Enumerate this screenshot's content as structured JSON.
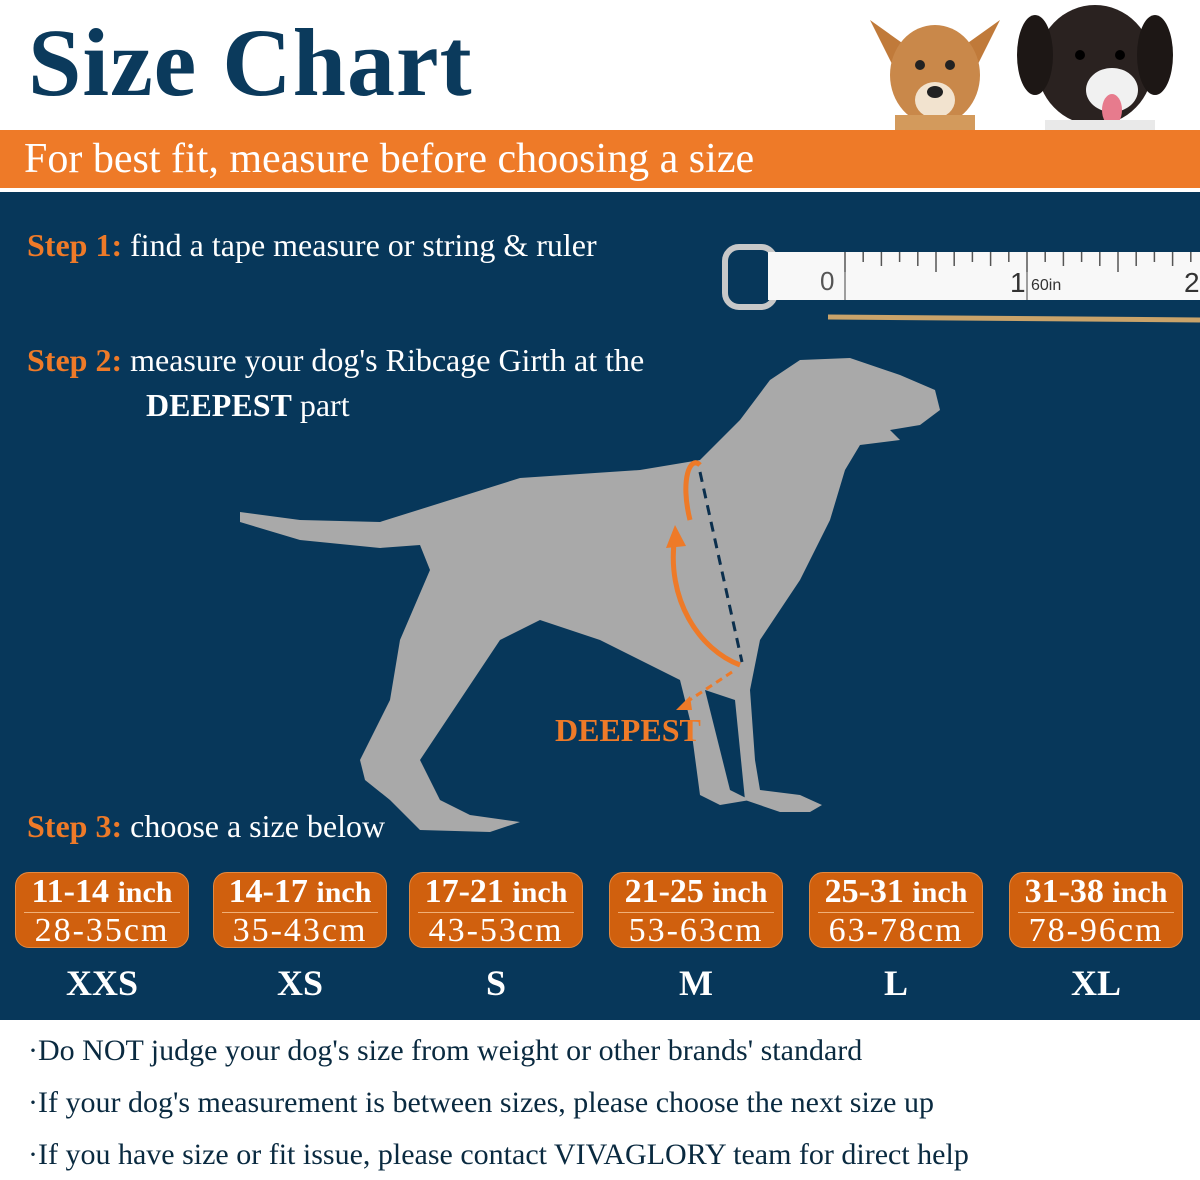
{
  "header": {
    "title": "Size Chart",
    "subtitle": "For best fit, measure before choosing a size"
  },
  "steps": [
    {
      "label": "Step 1:",
      "text": "find a tape measure or string & ruler"
    },
    {
      "label": "Step 2:",
      "text": "measure your dog's Ribcage Girth at the",
      "bold": "DEEPEST",
      "rest": " part"
    },
    {
      "label": "Step 3:",
      "text": "choose a size below"
    }
  ],
  "tape": {
    "marks": [
      "0",
      "1",
      "60in",
      "2"
    ]
  },
  "diagram": {
    "label": "DEEPEST"
  },
  "sizes": [
    {
      "inch": "11-14",
      "unit": "inch",
      "cm": "28-35cm",
      "size": "XXS"
    },
    {
      "inch": "14-17",
      "unit": "inch",
      "cm": "35-43cm",
      "size": "XS"
    },
    {
      "inch": "17-21",
      "unit": "inch",
      "cm": "43-53cm",
      "size": "S"
    },
    {
      "inch": "21-25",
      "unit": "inch",
      "cm": "53-63cm",
      "size": "M"
    },
    {
      "inch": "25-31",
      "unit": "inch",
      "cm": "63-78cm",
      "size": "L"
    },
    {
      "inch": "31-38",
      "unit": "inch",
      "cm": "78-96cm",
      "size": "XL"
    }
  ],
  "notes": [
    "·Do NOT judge your dog's size from weight or other brands' standard",
    "·If your dog's measurement is between sizes, please choose the next size up",
    "·If you have size or fit issue, please contact VIVAGLORY team for direct help"
  ],
  "colors": {
    "navy": "#07375a",
    "orange": "#ee7a28",
    "box": "#d0600e",
    "dog": "#a9a9a9"
  }
}
